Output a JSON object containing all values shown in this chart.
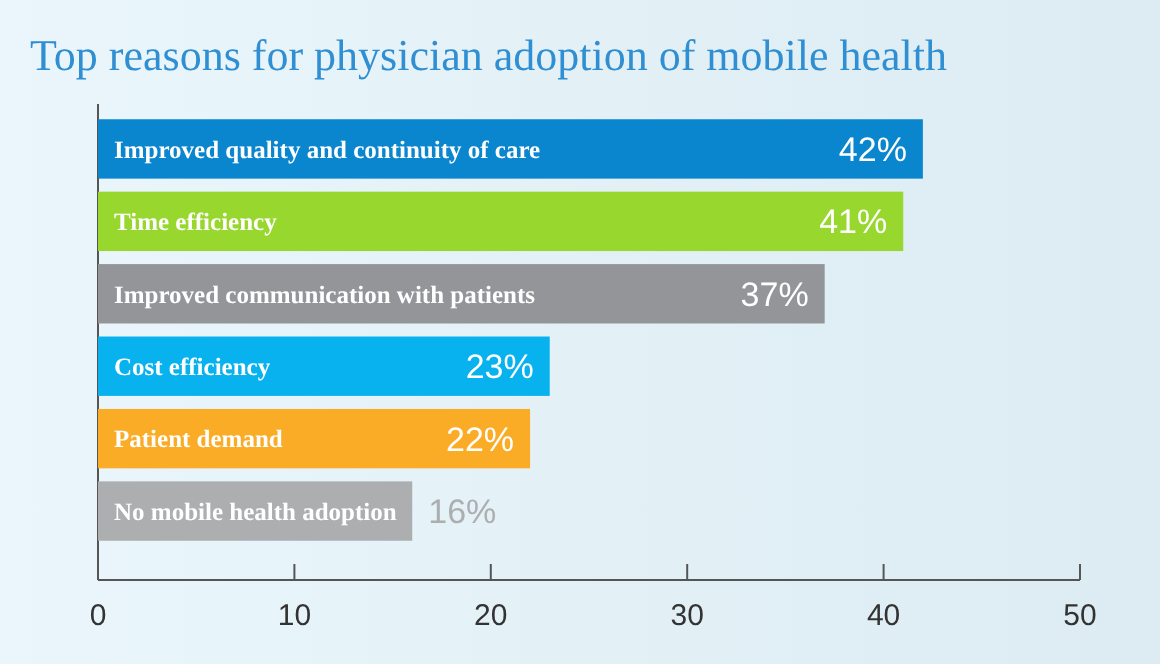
{
  "chart_data": {
    "type": "bar",
    "orientation": "horizontal",
    "title": "Top reasons for physician adoption of mobile health",
    "categories": [
      "Improved quality and continuity of care",
      "Time efficiency",
      "Improved communication with patients",
      "Cost efficiency",
      "Patient demand",
      "No mobile health adoption"
    ],
    "values": [
      42,
      41,
      37,
      23,
      22,
      16
    ],
    "value_labels": [
      "42%",
      "41%",
      "37%",
      "23%",
      "22%",
      "16%"
    ],
    "colors": [
      "#0a86cf",
      "#97d72e",
      "#939598",
      "#08b2ef",
      "#fbac27",
      "#adaeb0"
    ],
    "xlim": [
      0,
      50
    ],
    "xticks": [
      0,
      10,
      20,
      30,
      40,
      50
    ],
    "grid": false
  }
}
